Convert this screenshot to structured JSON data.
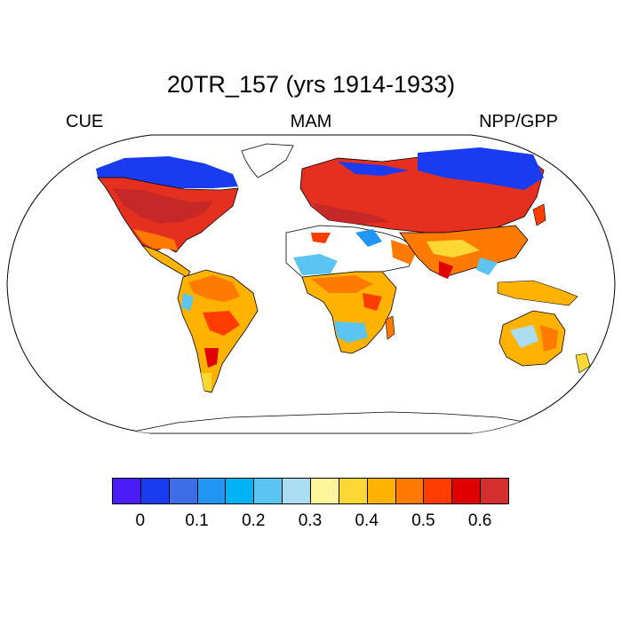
{
  "title": "20TR_157 (yrs 1914-1933)",
  "subtitle": {
    "left": "CUE",
    "center": "MAM",
    "right": "NPP/GPP"
  },
  "colorbar": {
    "colors": [
      "#4b1cf5",
      "#1a3cf0",
      "#3d6ee8",
      "#2196f3",
      "#00b3f5",
      "#5bc4f2",
      "#aadcf2",
      "#fff59d",
      "#fdd835",
      "#ffb300",
      "#ff7a00",
      "#ff3d00",
      "#e00000",
      "#d32f2f"
    ],
    "labels": [
      "0",
      "0.1",
      "0.2",
      "0.3",
      "0.4",
      "0.5",
      "0.6"
    ]
  }
}
